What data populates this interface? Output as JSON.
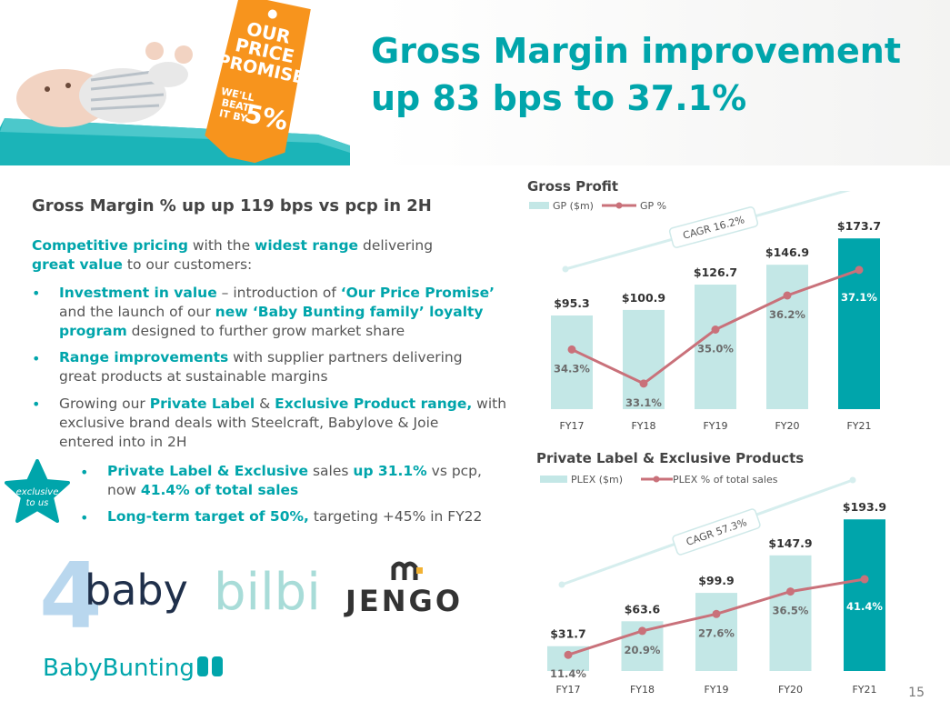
{
  "title_line1": "Gross Margin improvement",
  "title_line2": "up 83 bps to 37.1%",
  "promo_tag": {
    "line1": "OUR",
    "line2": "PRICE",
    "line3": "PROMISE",
    "beat_line1": "WE'LL",
    "beat_line2": "BEAT",
    "beat_line3": "IT BY",
    "beat_pct": "5%"
  },
  "subhead": "Gross Margin % up up 119 bps vs pcp in 2H",
  "intro": {
    "p1": "Competitive pricing",
    "p2": " with the ",
    "p3": "widest range",
    "p4": " delivering",
    "p5": "great value",
    "p6": " to our customers:"
  },
  "bullet1": {
    "a": "Investment in value",
    "b": " – introduction of ",
    "c": "‘Our Price Promise’",
    "d": "and the launch of our ",
    "e": "new ‘Baby Bunting family’ loyalty",
    "f": "program",
    "g": " designed to further grow market share"
  },
  "bullet2": {
    "a": "Range improvements",
    "b": " with supplier partners delivering",
    "c": "great products at sustainable margins"
  },
  "bullet3": {
    "a": "Growing our ",
    "b": "Private Label",
    "c": " & ",
    "d": "Exclusive Product range,",
    "e": " with",
    "f": "exclusive brand deals with Steelcraft, Babylove & Joie",
    "g": "entered into in 2H"
  },
  "sub1": {
    "a": "Private Label & Exclusive",
    "b": " sales ",
    "c": "up 31.1%",
    "d": " vs pcp,",
    "e": "now ",
    "f": "41.4% of total sales"
  },
  "sub2": {
    "a": "Long-term target of 50%,",
    "b": " targeting +45% in FY22"
  },
  "badge": {
    "line1": "exclusive",
    "line2": "to us"
  },
  "brands": {
    "b1_num": "4",
    "b1_text": "baby",
    "b2": "bilbi",
    "b3": "JENGO",
    "b4": "BabyBunting"
  },
  "bullet_char": "•",
  "page_number": "15",
  "colors": {
    "teal": "#00a5ab",
    "bar_light": "#c3e7e6",
    "line": "#c9717a",
    "cagr_line": "#d6eeee"
  },
  "chart_data": [
    {
      "type": "bar",
      "title": "Gross Profit",
      "categories": [
        "FY17",
        "FY18",
        "FY19",
        "FY20",
        "FY21"
      ],
      "series": [
        {
          "name": "GP ($m)",
          "values": [
            95.3,
            100.9,
            126.7,
            146.9,
            173.7
          ],
          "labels": [
            "$95.3",
            "$100.9",
            "$126.7",
            "$146.9",
            "$173.7"
          ]
        },
        {
          "name": "GP %",
          "type": "line",
          "values": [
            34.3,
            33.1,
            35.0,
            36.2,
            37.1
          ],
          "labels": [
            "34.3%",
            "33.1%",
            "35.0%",
            "36.2%",
            "37.1%"
          ]
        }
      ],
      "annotation": "CAGR 16.2%",
      "ylim": [
        0,
        185
      ],
      "line_ylim": [
        32.2,
        38.6
      ]
    },
    {
      "type": "bar",
      "title": "Private Label & Exclusive Products",
      "categories": [
        "FY17",
        "FY18",
        "FY19",
        "FY20",
        "FY21"
      ],
      "series": [
        {
          "name": "PLEX ($m)",
          "values": [
            31.7,
            63.6,
            99.9,
            147.9,
            193.9
          ],
          "labels": [
            "$31.7",
            "$63.6",
            "$99.9",
            "$147.9",
            "$193.9"
          ]
        },
        {
          "name": "PLEX % of total sales",
          "type": "line",
          "values": [
            11.4,
            20.9,
            27.6,
            36.5,
            41.4
          ],
          "labels": [
            "11.4%",
            "20.9%",
            "27.6%",
            "36.5%",
            "41.4%"
          ]
        }
      ],
      "annotation": "CAGR 57.3%",
      "ylim": [
        0,
        200
      ],
      "line_ylim": [
        5,
        67
      ]
    }
  ]
}
